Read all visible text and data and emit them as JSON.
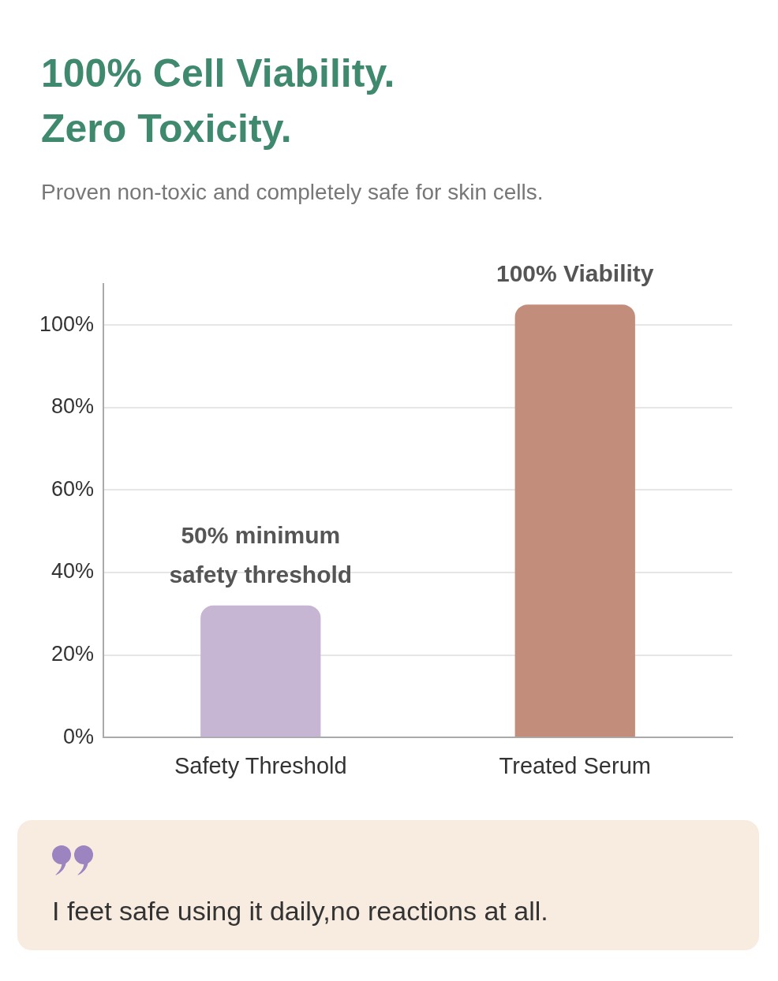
{
  "chart_data": {
    "type": "bar",
    "title": "100% Cell Viability.\nZero Toxicity.",
    "subtitle": "Proven non-toxic and completely safe for skin cells.",
    "categories": [
      "Safety Threshold",
      "Treated Serum"
    ],
    "values": [
      32,
      105
    ],
    "colors": [
      "#c6b6d3",
      "#c28e7b"
    ],
    "ylim": [
      0,
      110
    ],
    "yticks": [
      {
        "value": 0,
        "label": "0%"
      },
      {
        "value": 20,
        "label": "20%"
      },
      {
        "value": 40,
        "label": "40%"
      },
      {
        "value": 60,
        "label": "60%"
      },
      {
        "value": 80,
        "label": "80%"
      },
      {
        "value": 100,
        "label": "100%"
      }
    ],
    "grid": "y",
    "legend": false,
    "annotations": [
      {
        "text": "50% minimum safety threshold",
        "x": "Safety Threshold",
        "y": 32
      },
      {
        "text": "100% Viability",
        "x": "Treated Serum",
        "y": 105
      },
      "I feet safe using it daily,no reactions at all."
    ]
  }
}
